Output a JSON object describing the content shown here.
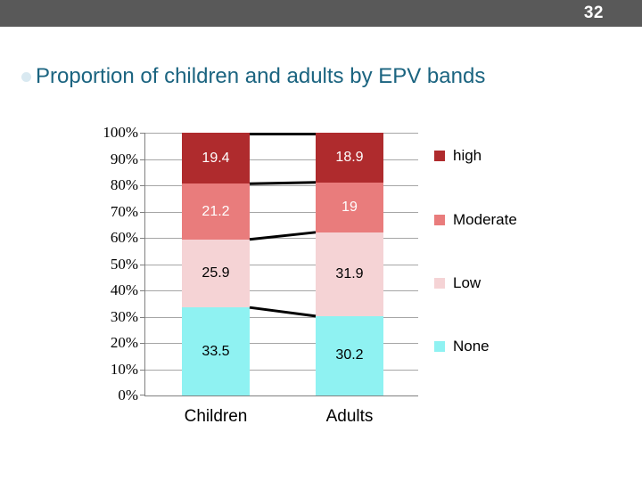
{
  "slide": {
    "page_number": "32",
    "title": "Proportion of children and adults by EPV bands",
    "background_color": "#FFFFFF",
    "top_bar_color": "#595959",
    "title_color": "#1B6480"
  },
  "chart_data": {
    "type": "bar",
    "variant": "100-percent-stacked-column",
    "title": "",
    "categories": [
      "Children",
      "Adults"
    ],
    "series": [
      {
        "name": "None",
        "color": "#8FF2F2",
        "label_color": "#000000",
        "values": [
          33.5,
          30.2
        ],
        "labels": [
          "33.5",
          "30.2"
        ]
      },
      {
        "name": "Low",
        "color": "#F5D3D5",
        "label_color": "#000000",
        "values": [
          25.9,
          31.9
        ],
        "labels": [
          "25.9",
          "31.9"
        ]
      },
      {
        "name": "Moderate",
        "color": "#E97C7C",
        "label_color": "#FFFFFF",
        "values": [
          21.2,
          19
        ],
        "labels": [
          "21.2",
          "19"
        ]
      },
      {
        "name": "high",
        "color": "#AF2B2D",
        "label_color": "#FFFFFF",
        "values": [
          19.4,
          18.9
        ],
        "labels": [
          "19.4",
          "18.9"
        ]
      }
    ],
    "stack_order_bottom_to_top": [
      "None",
      "Low",
      "Moderate",
      "high"
    ],
    "y_axis": {
      "min": 0,
      "max": 100,
      "tick_labels": [
        "0%",
        "10%",
        "20%",
        "30%",
        "40%",
        "50%",
        "60%",
        "70%",
        "80%",
        "90%",
        "100%"
      ],
      "gridlines": true,
      "gridline_color": "#A6A6A6",
      "axis_color": "#808080"
    },
    "legend": {
      "position": "right",
      "entries": [
        "high",
        "Moderate",
        "Low",
        "None"
      ]
    },
    "series_lines": {
      "show": true,
      "color": "#000000"
    }
  }
}
